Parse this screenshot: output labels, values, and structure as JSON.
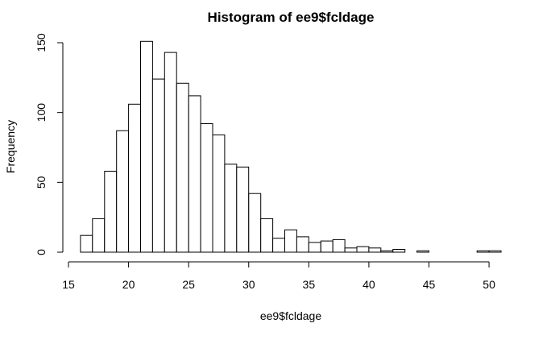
{
  "chart_data": {
    "type": "bar",
    "title": "Histogram of ee9$fcldage",
    "xlabel": "ee9$fcldage",
    "ylabel": "Frequency",
    "bin_width": 1,
    "bins_start": [
      16,
      17,
      18,
      19,
      20,
      21,
      22,
      23,
      24,
      25,
      26,
      27,
      28,
      29,
      30,
      31,
      32,
      33,
      34,
      35,
      36,
      37,
      38,
      39,
      40,
      41,
      42,
      43,
      44,
      45,
      46,
      47,
      48,
      49,
      50
    ],
    "values": [
      12,
      24,
      58,
      87,
      106,
      151,
      124,
      143,
      121,
      112,
      92,
      84,
      63,
      61,
      42,
      24,
      10,
      16,
      11,
      7,
      8,
      9,
      3,
      4,
      3,
      1,
      2,
      0,
      1,
      0,
      0,
      0,
      0,
      1,
      1
    ],
    "xlim": [
      15,
      51
    ],
    "ylim": [
      0,
      150
    ],
    "x_ticks": [
      15,
      20,
      25,
      30,
      35,
      40,
      45,
      50
    ],
    "y_ticks": [
      0,
      50,
      100,
      150
    ],
    "grid": false
  }
}
